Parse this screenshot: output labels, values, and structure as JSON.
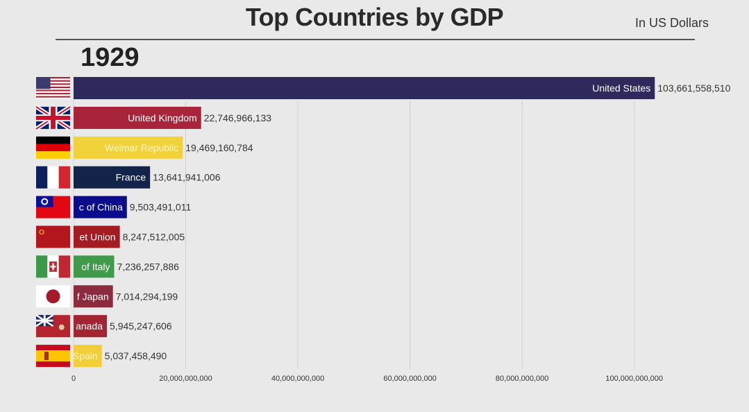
{
  "header": {
    "title": "Top Countries by GDP",
    "subtitle": "In US Dollars",
    "year": "1929"
  },
  "chart_data": {
    "type": "bar",
    "orientation": "horizontal",
    "title": "Top Countries by GDP",
    "subtitle": "In US Dollars",
    "year": "1929",
    "xlim": [
      0,
      104000000000
    ],
    "grid": true,
    "ticks": [
      {
        "value": 0,
        "label": "0"
      },
      {
        "value": 20000000000,
        "label": "20,000,000,000"
      },
      {
        "value": 40000000000,
        "label": "40,000,000,000"
      },
      {
        "value": 60000000000,
        "label": "60,000,000,000"
      },
      {
        "value": 80000000000,
        "label": "80,000,000,000"
      },
      {
        "value": 100000000000,
        "label": "100,000,000,000"
      }
    ],
    "bars": [
      {
        "name": "United States",
        "display": "United States",
        "value": 103661558510,
        "value_label": "103,661,558,510",
        "color": "#2f2a5c",
        "text_color": "#ffffff",
        "flag": "usa-flag-icon"
      },
      {
        "name": "United Kingdom",
        "display": "United Kingdom",
        "value": 22746966133,
        "value_label": "22,746,966,133",
        "color": "#a8243a",
        "text_color": "#ffffff",
        "flag": "uk-flag-icon"
      },
      {
        "name": "Weimar Republic",
        "display": "Weimar Republic",
        "value": 19469160784,
        "value_label": "19,469,160,784",
        "color": "#f2d23a",
        "text_color": "#fff6c8",
        "flag": "germany-flag-icon"
      },
      {
        "name": "France",
        "display": "France",
        "value": 13641941006,
        "value_label": "13,641,941,006",
        "color": "#13234a",
        "text_color": "#ffffff",
        "flag": "france-flag-icon"
      },
      {
        "name": "Republic of China",
        "display": "c of China",
        "value": 9503491011,
        "value_label": "9,503,491,011",
        "color": "#0a0c8c",
        "text_color": "#ffffff",
        "flag": "roc-flag-icon"
      },
      {
        "name": "Soviet Union",
        "display": "et Union",
        "value": 8247512005,
        "value_label": "8,247,512,005",
        "color": "#a31c24",
        "text_color": "#ffffff",
        "flag": "ussr-flag-icon"
      },
      {
        "name": "Kingdom of Italy",
        "display": "of Italy",
        "value": 7236257886,
        "value_label": "7,236,257,886",
        "color": "#3f9a4a",
        "text_color": "#ffffff",
        "flag": "italy-flag-icon"
      },
      {
        "name": "Empire of Japan",
        "display": "f Japan",
        "value": 7014294199,
        "value_label": "7,014,294,199",
        "color": "#8c2a3e",
        "text_color": "#ffffff",
        "flag": "japan-flag-icon"
      },
      {
        "name": "Canada",
        "display": "anada",
        "value": 5945247606,
        "value_label": "5,945,247,606",
        "color": "#a32432",
        "text_color": "#ffffff",
        "flag": "canada-flag-icon"
      },
      {
        "name": "Spain",
        "display": "Spain",
        "value": 5037458490,
        "value_label": "5,037,458,490",
        "color": "#f2cf3a",
        "text_color": "#fff6c8",
        "flag": "spain-flag-icon"
      }
    ]
  }
}
